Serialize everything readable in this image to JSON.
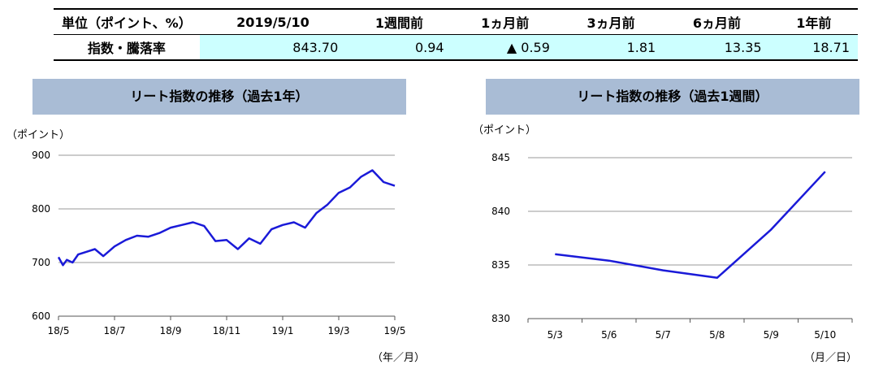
{
  "table": {
    "header_label": "単位（ポイント、%）",
    "columns": [
      "2019/5/10",
      "1週間前",
      "1ヵ月前",
      "3ヵ月前",
      "6ヵ月前",
      "1年前"
    ],
    "row_label": "指数・騰落率",
    "values": [
      "843.70",
      "0.94",
      "▲ 0.59",
      "1.81",
      "13.35",
      "18.71"
    ]
  },
  "chart_data": [
    {
      "type": "line",
      "title": "リート指数の推移（過去1年）",
      "ylabel": "（ポイント）",
      "xlabel": "（年／月）",
      "ylim": [
        600,
        900
      ],
      "yticks": [
        600,
        700,
        800,
        900
      ],
      "x_ticks": [
        "18/5",
        "18/7",
        "18/9",
        "18/11",
        "19/1",
        "19/3",
        "19/5"
      ],
      "grid": true,
      "series": [
        {
          "color": "#1a1ad8",
          "x": [
            0,
            0.08,
            0.15,
            0.25,
            0.35,
            0.5,
            0.65,
            0.8,
            1,
            1.2,
            1.4,
            1.6,
            1.8,
            2.0,
            2.2,
            2.4,
            2.6,
            2.8,
            3.0,
            3.2,
            3.4,
            3.6,
            3.8,
            4.0,
            4.2,
            4.4,
            4.6,
            4.8,
            5.0,
            5.2,
            5.4,
            5.6,
            5.8,
            6.0
          ],
          "values": [
            710,
            695,
            705,
            700,
            715,
            720,
            725,
            712,
            730,
            742,
            750,
            748,
            755,
            765,
            770,
            775,
            768,
            740,
            742,
            725,
            745,
            735,
            762,
            770,
            775,
            765,
            792,
            808,
            830,
            840,
            860,
            872,
            850,
            843
          ]
        }
      ]
    },
    {
      "type": "line",
      "title": "リート指数の推移（過去1週間）",
      "ylabel": "（ポイント）",
      "xlabel": "（月／日）",
      "ylim": [
        830,
        845
      ],
      "yticks": [
        830,
        835,
        840,
        845
      ],
      "categories": [
        "5/3",
        "5/6",
        "5/7",
        "5/8",
        "5/9",
        "5/10"
      ],
      "grid": true,
      "series": [
        {
          "color": "#1a1ad8",
          "values": [
            836.0,
            835.4,
            834.5,
            833.8,
            838.3,
            843.7
          ]
        }
      ]
    }
  ]
}
